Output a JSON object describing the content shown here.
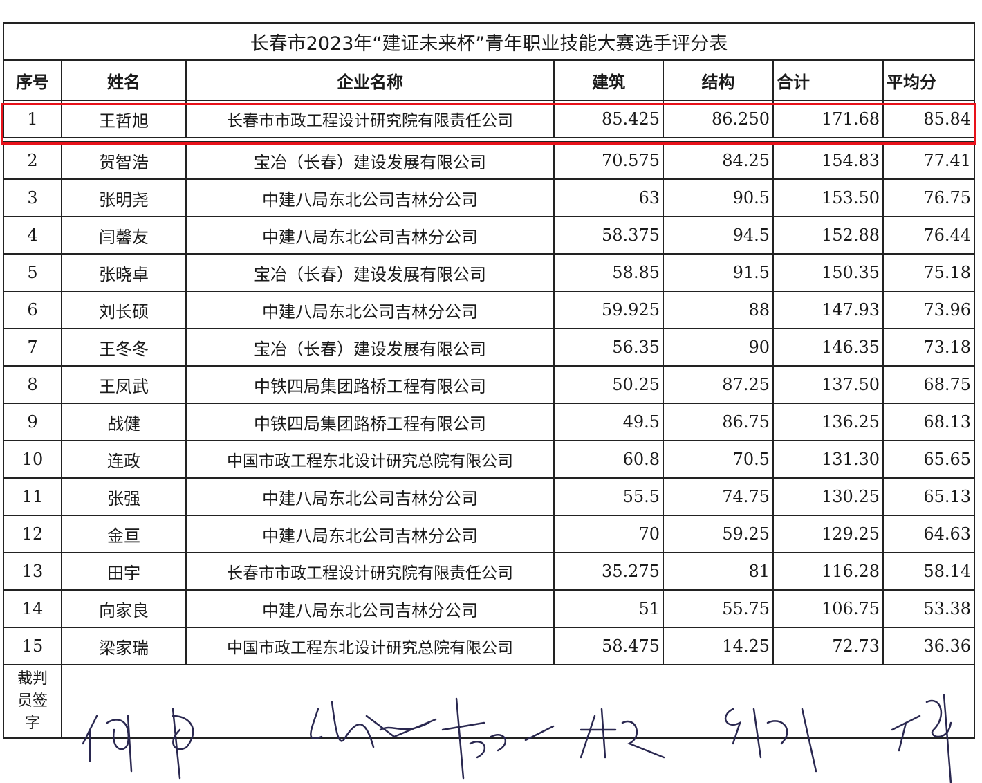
{
  "title": "长春市2023年“建证未来杯”青年职业技能大赛选手评分表",
  "headers": [
    "序号",
    "姓名",
    "企业名称",
    "建筑",
    "结构",
    "合计",
    "平均分"
  ],
  "highlight_color": "#e8121a",
  "rows": [
    [
      "1",
      "王哲旭",
      "长春市市政工程设计研究院有限责任公司",
      "85.425",
      "86.250",
      "171.68",
      "85.84"
    ],
    [
      "2",
      "贺智浩",
      "宝冶（长春）建设发展有限公司",
      "70.575",
      "84.25",
      "154.83",
      "77.41"
    ],
    [
      "3",
      "张明尧",
      "中建八局东北公司吉林分公司",
      "63",
      "90.5",
      "153.50",
      "76.75"
    ],
    [
      "4",
      "闫馨友",
      "中建八局东北公司吉林分公司",
      "58.375",
      "94.5",
      "152.88",
      "76.44"
    ],
    [
      "5",
      "张晓卓",
      "宝冶（长春）建设发展有限公司",
      "58.85",
      "91.5",
      "150.35",
      "75.18"
    ],
    [
      "6",
      "刘长硕",
      "中建八局东北公司吉林分公司",
      "59.925",
      "88",
      "147.93",
      "73.96"
    ],
    [
      "7",
      "王冬冬",
      "宝冶（长春）建设发展有限公司",
      "56.35",
      "90",
      "146.35",
      "73.18"
    ],
    [
      "8",
      "王凤武",
      "中铁四局集团路桥工程有限公司",
      "50.25",
      "87.25",
      "137.50",
      "68.75"
    ],
    [
      "9",
      "战健",
      "中铁四局集团路桥工程有限公司",
      "49.5",
      "86.75",
      "136.25",
      "68.13"
    ],
    [
      "10",
      "连政",
      "中国市政工程东北设计研究总院有限公司",
      "60.8",
      "70.5",
      "131.30",
      "65.65"
    ],
    [
      "11",
      "张强",
      "中建八局东北公司吉林分公司",
      "55.5",
      "74.75",
      "130.25",
      "65.13"
    ],
    [
      "12",
      "金亘",
      "中建八局东北公司吉林分公司",
      "70",
      "59.25",
      "129.25",
      "64.63"
    ],
    [
      "13",
      "田宇",
      "长春市市政工程设计研究院有限责任公司",
      "35.275",
      "81",
      "116.28",
      "58.14"
    ],
    [
      "14",
      "向家良",
      "中建八局东北公司吉林分公司",
      "51",
      "55.75",
      "106.75",
      "53.38"
    ],
    [
      "15",
      "梁家瑞",
      "中国市政工程东北设计研究总院有限公司",
      "58.475",
      "14.25",
      "72.73",
      "36.36"
    ]
  ],
  "signature_label": "裁判员签字"
}
